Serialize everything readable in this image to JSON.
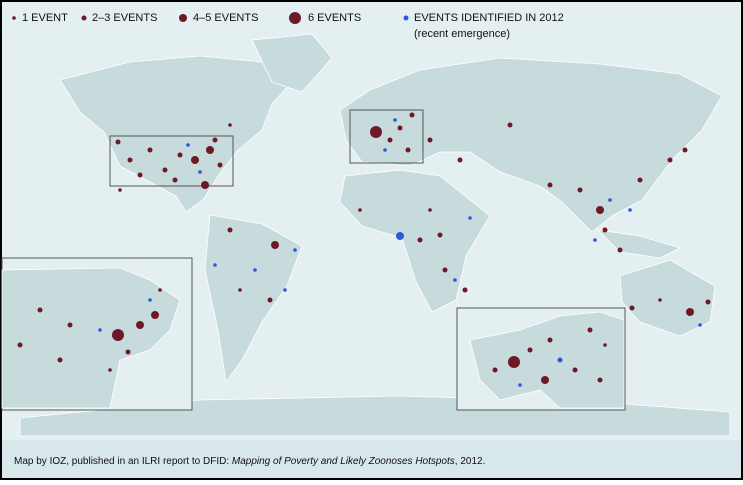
{
  "legend": {
    "items": [
      "1 EVENT",
      "2–3 EVENTS",
      "4–5 EVENTS",
      "6 EVENTS"
    ],
    "recent": "EVENTS IDENTIFIED IN 2012",
    "recent_note": "(recent emergence)"
  },
  "caption": {
    "prefix": "Map by IOZ, published in an ILRI report to DFID: ",
    "title": "Mapping of Poverty and Likely Zoonoses Hotspots",
    "suffix": ", 2012."
  }
}
